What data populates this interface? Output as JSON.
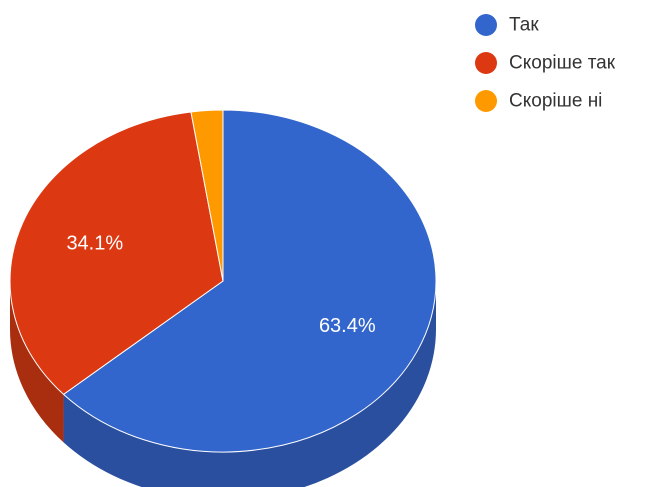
{
  "chart_data": {
    "type": "pie",
    "style": "3d",
    "categories": [
      "Так",
      "Скоріше так",
      "Скоріше ні"
    ],
    "values": [
      63.4,
      34.1,
      2.4
    ],
    "data_labels": [
      "63.4%",
      "34.1%",
      ""
    ],
    "colors": [
      "#3366cc",
      "#dc3912",
      "#ff9900"
    ],
    "shade_colors": [
      "#2a4f9f",
      "#a92e0f",
      "#c77600"
    ],
    "legend": {
      "position": "top-right",
      "entries": [
        {
          "label": "Так",
          "color": "#3366cc"
        },
        {
          "label": "Скоріше так",
          "color": "#dc3912"
        },
        {
          "label": "Скоріше ні",
          "color": "#ff9900"
        }
      ]
    }
  }
}
